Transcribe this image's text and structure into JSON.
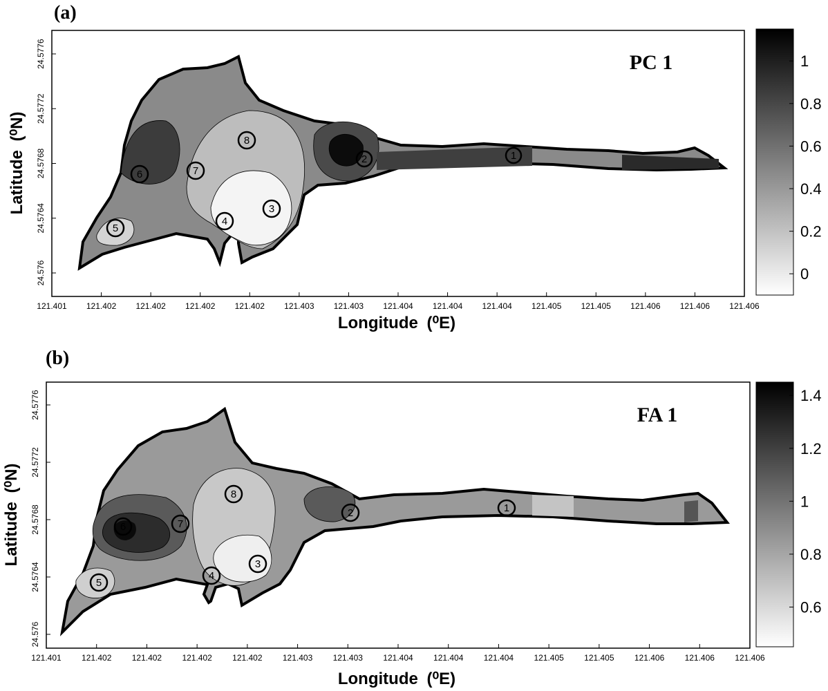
{
  "chart_data": [
    {
      "type": "heatmap",
      "panel_label": "(a)",
      "map_label": "PC 1",
      "xlabel": "Longitude",
      "xlabel_unit": "(⁰E)",
      "ylabel": "Latitude",
      "ylabel_unit": "(⁰N)",
      "x_ticks": [
        "121.401",
        "121.402",
        "121.402",
        "121.402",
        "121.402",
        "121.403",
        "121.403",
        "121.404",
        "121.404",
        "121.404",
        "121.405",
        "121.405",
        "121.406",
        "121.406",
        "121.406"
      ],
      "y_ticks": [
        "24.576",
        "24.5764",
        "24.5768",
        "24.5772",
        "24.5776"
      ],
      "colorbar_ticks": [
        "0",
        "0.2",
        "0.4",
        "0.6",
        "0.8",
        "1"
      ],
      "colorbar_range": [
        -0.1,
        1.15
      ],
      "colormap": [
        "#ffffff",
        "#000000"
      ],
      "stations": [
        "1",
        "2",
        "3",
        "4",
        "5",
        "6",
        "7",
        "8"
      ]
    },
    {
      "type": "heatmap",
      "panel_label": "(b)",
      "map_label": "FA 1",
      "xlabel": "Longitude",
      "xlabel_unit": "(⁰E)",
      "ylabel": "Latitude",
      "ylabel_unit": "(⁰N)",
      "x_ticks": [
        "121.401",
        "121.402",
        "121.402",
        "121.402",
        "121.402",
        "121.403",
        "121.403",
        "121.404",
        "121.404",
        "121.404",
        "121.405",
        "121.405",
        "121.406",
        "121.406",
        "121.406"
      ],
      "y_ticks": [
        "24.576",
        "24.5764",
        "24.5768",
        "24.5772",
        "24.5776"
      ],
      "colorbar_ticks": [
        "0.6",
        "0.8",
        "1",
        "1.2",
        "1.4"
      ],
      "colorbar_range": [
        0.45,
        1.45
      ],
      "colormap": [
        "#ffffff",
        "#000000"
      ],
      "stations": [
        "1",
        "2",
        "3",
        "4",
        "5",
        "6",
        "7",
        "8"
      ]
    }
  ]
}
